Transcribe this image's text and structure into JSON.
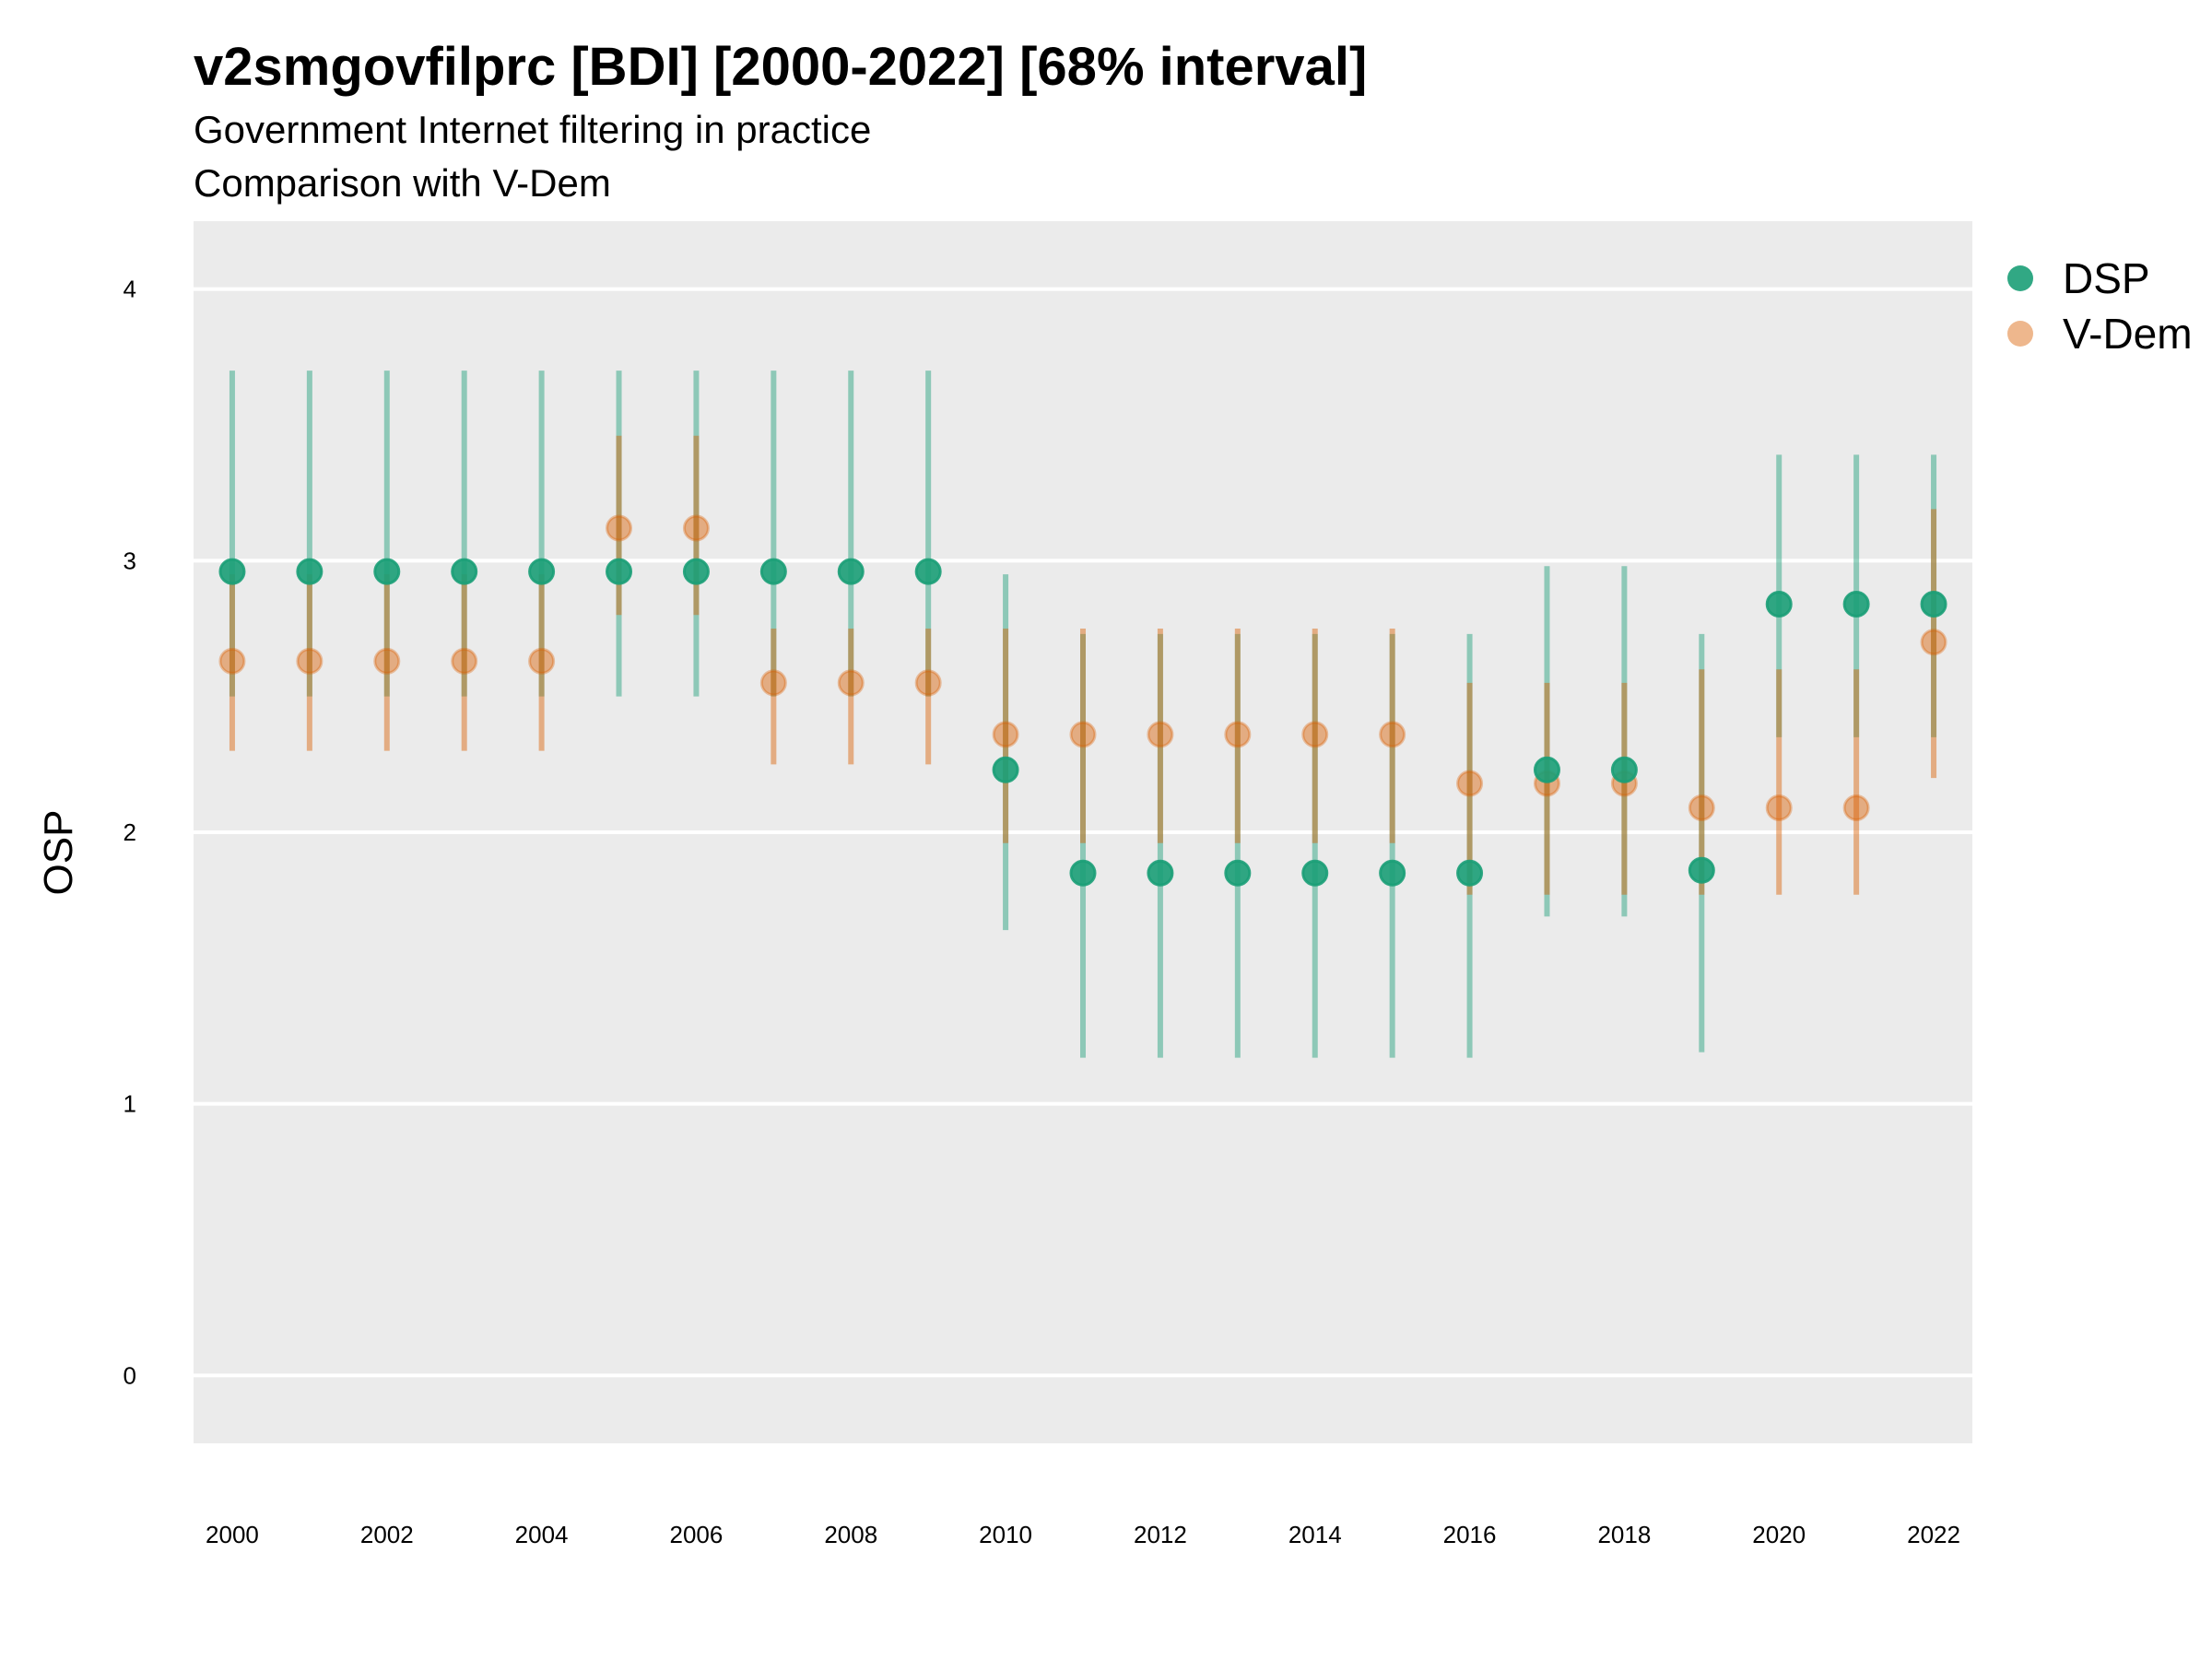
{
  "chart_data": {
    "type": "scatter",
    "title": "v2smgovfilprc [BDI] [2000-2022] [68% interval]",
    "subtitle": "Government Internet filtering in practice",
    "subtitle2": "Comparison with V-Dem",
    "xlabel": "",
    "ylabel": "OSP",
    "ylim": [
      -0.25,
      4.25
    ],
    "xlim": [
      1999.5,
      2022.5
    ],
    "y_ticks": [
      0,
      1,
      2,
      3,
      4
    ],
    "x_ticks": [
      2000,
      2002,
      2004,
      2006,
      2008,
      2010,
      2012,
      2014,
      2016,
      2018,
      2020,
      2022
    ],
    "grid": true,
    "legend_position": "top-right",
    "x": [
      2000,
      2001,
      2002,
      2003,
      2004,
      2005,
      2006,
      2007,
      2008,
      2009,
      2010,
      2011,
      2012,
      2013,
      2014,
      2015,
      2016,
      2017,
      2018,
      2019,
      2020,
      2021,
      2022
    ],
    "series": [
      {
        "name": "DSP",
        "color": "#1b9e77",
        "values": [
          2.96,
          2.96,
          2.96,
          2.96,
          2.96,
          2.96,
          2.96,
          2.96,
          2.96,
          2.96,
          2.23,
          1.85,
          1.85,
          1.85,
          1.85,
          1.85,
          1.85,
          2.23,
          2.23,
          1.86,
          2.84,
          2.84,
          2.84
        ],
        "lower": [
          2.5,
          2.5,
          2.5,
          2.5,
          2.5,
          2.5,
          2.5,
          2.5,
          2.5,
          2.5,
          1.64,
          1.17,
          1.17,
          1.17,
          1.17,
          1.17,
          1.17,
          1.69,
          1.69,
          1.19,
          2.35,
          2.35,
          2.35
        ],
        "upper": [
          3.7,
          3.7,
          3.7,
          3.7,
          3.7,
          3.7,
          3.7,
          3.7,
          3.7,
          3.7,
          2.95,
          2.73,
          2.73,
          2.73,
          2.73,
          2.73,
          2.73,
          2.98,
          2.98,
          2.73,
          3.39,
          3.39,
          3.39
        ]
      },
      {
        "name": "V-Dem",
        "color": "#d95f02",
        "values": [
          2.63,
          2.63,
          2.63,
          2.63,
          2.63,
          3.12,
          3.12,
          2.55,
          2.55,
          2.55,
          2.36,
          2.36,
          2.36,
          2.36,
          2.36,
          2.36,
          2.18,
          2.18,
          2.18,
          2.09,
          2.09,
          2.09,
          2.7
        ],
        "lower": [
          2.3,
          2.3,
          2.3,
          2.3,
          2.3,
          2.8,
          2.8,
          2.25,
          2.25,
          2.25,
          1.96,
          1.96,
          1.96,
          1.96,
          1.96,
          1.96,
          1.77,
          1.77,
          1.77,
          1.77,
          1.77,
          1.77,
          2.2
        ],
        "upper": [
          2.95,
          2.95,
          2.95,
          2.95,
          2.95,
          3.46,
          3.46,
          2.75,
          2.75,
          2.75,
          2.75,
          2.75,
          2.75,
          2.75,
          2.75,
          2.75,
          2.55,
          2.55,
          2.55,
          2.6,
          2.6,
          2.6,
          3.19
        ]
      }
    ]
  }
}
